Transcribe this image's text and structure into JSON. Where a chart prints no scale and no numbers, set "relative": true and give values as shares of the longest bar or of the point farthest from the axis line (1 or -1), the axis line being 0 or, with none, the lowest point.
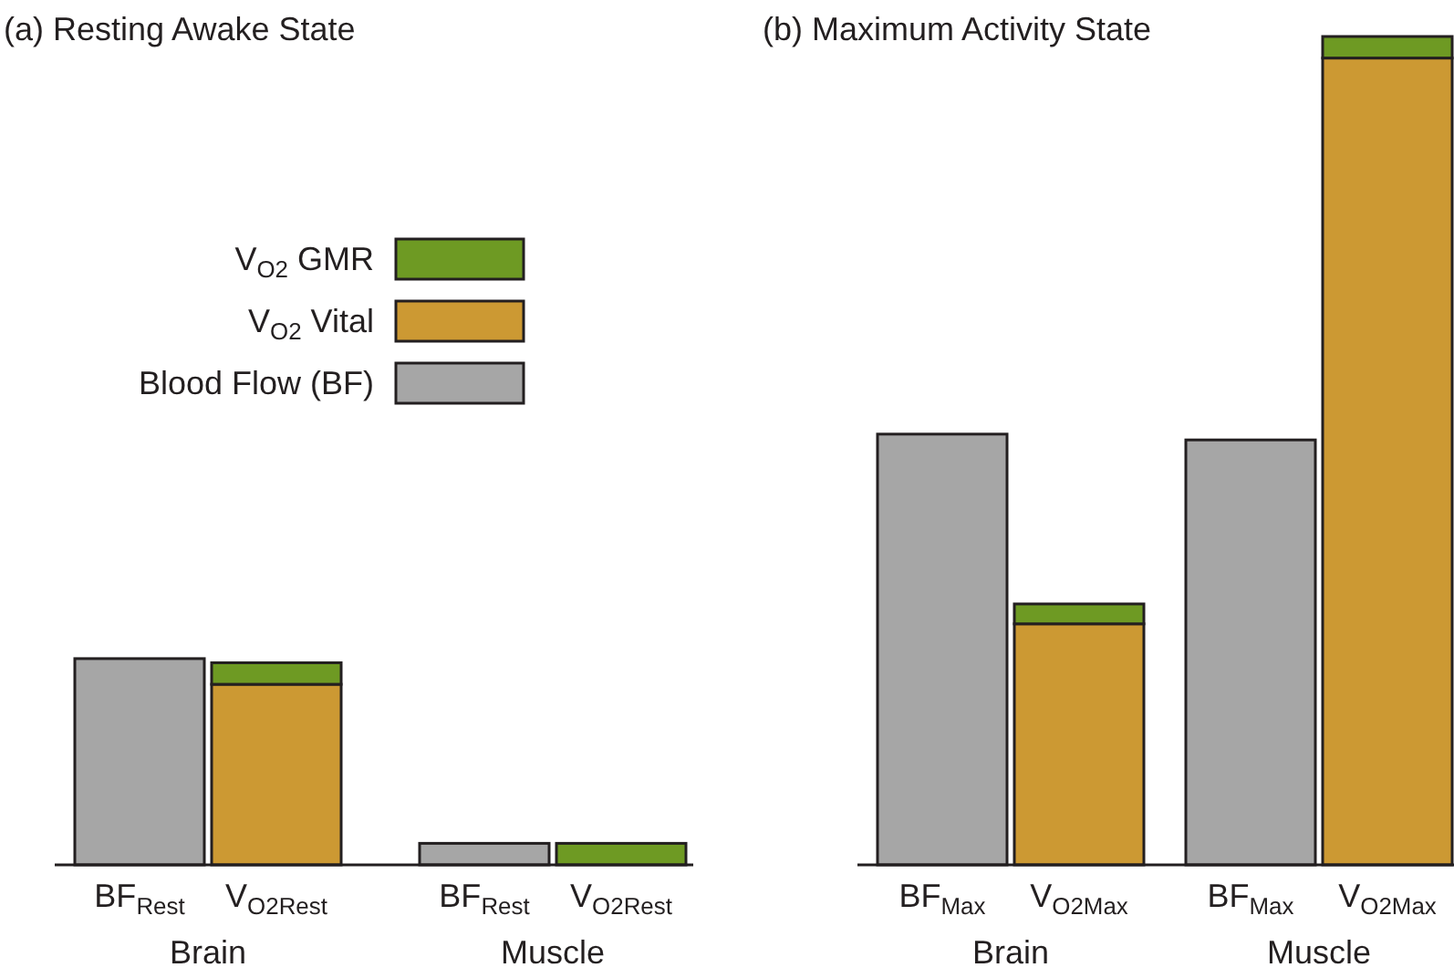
{
  "chart_data": {
    "type": "bar",
    "relative": true,
    "stacked": true,
    "legend": "top left",
    "categories": [
      "BF$_{Rest}$",
      "V$_{O2Rest}$",
      "BF$_{Rest}$",
      "V$_{O2Rest}$",
      "BF$_{Max}$",
      "V$_{O2Max}$",
      "BF$_{Max}$",
      "V$_{O2Max}$"
    ],
    "annotations": [
      "(a)  Resting Awake State",
      "(b)  Maximum Activity State",
      "Brain",
      "Muscle",
      "Brain",
      "Muscle"
    ],
    "series": [
      {
        "name": "Blood Flow (BF)",
        "color": "#a6a6a6",
        "values": [
          0.249,
          null,
          0.026,
          null,
          0.52,
          null,
          0.513,
          null
        ]
      },
      {
        "name": "V$_{O2}$ Vital",
        "color": "#cc9933",
        "values": [
          null,
          0.218,
          null,
          0,
          null,
          0.291,
          null,
          0.974
        ]
      },
      {
        "name": "V$_{O2}$ GMR",
        "color": "#6e9a23",
        "values": [
          null,
          0.026,
          null,
          0.026,
          null,
          0.024,
          null,
          0.026
        ]
      }
    ]
  }
}
